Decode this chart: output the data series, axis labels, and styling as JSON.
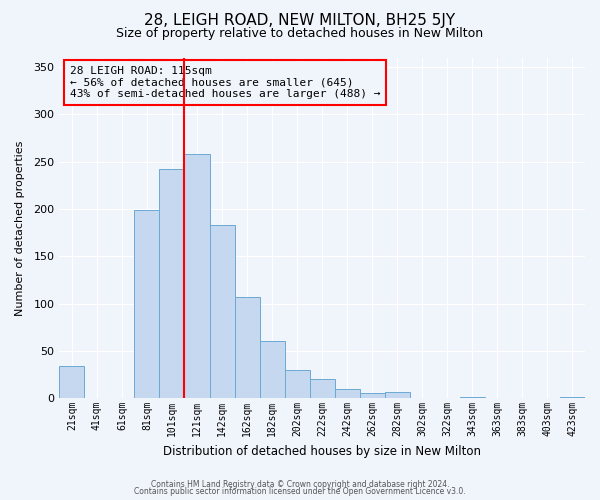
{
  "title": "28, LEIGH ROAD, NEW MILTON, BH25 5JY",
  "subtitle": "Size of property relative to detached houses in New Milton",
  "xlabel": "Distribution of detached houses by size in New Milton",
  "ylabel": "Number of detached properties",
  "bar_labels": [
    "21sqm",
    "41sqm",
    "61sqm",
    "81sqm",
    "101sqm",
    "121sqm",
    "142sqm",
    "162sqm",
    "182sqm",
    "202sqm",
    "222sqm",
    "242sqm",
    "262sqm",
    "282sqm",
    "302sqm",
    "322sqm",
    "343sqm",
    "363sqm",
    "383sqm",
    "403sqm",
    "423sqm"
  ],
  "bar_values": [
    34,
    0,
    0,
    199,
    242,
    258,
    183,
    107,
    60,
    30,
    20,
    10,
    5,
    7,
    0,
    0,
    1,
    0,
    0,
    0,
    1
  ],
  "bar_color": "#c5d8f0",
  "bar_edge_color": "#6aaad4",
  "vline_color": "red",
  "vline_index": 5,
  "annotation_title": "28 LEIGH ROAD: 115sqm",
  "annotation_line1": "← 56% of detached houses are smaller (645)",
  "annotation_line2": "43% of semi-detached houses are larger (488) →",
  "annotation_box_color": "red",
  "ylim": [
    0,
    360
  ],
  "yticks": [
    0,
    50,
    100,
    150,
    200,
    250,
    300,
    350
  ],
  "footer1": "Contains HM Land Registry data © Crown copyright and database right 2024.",
  "footer2": "Contains public sector information licensed under the Open Government Licence v3.0.",
  "bg_color": "#f0f4fb",
  "title_fontsize": 11,
  "subtitle_fontsize": 9
}
